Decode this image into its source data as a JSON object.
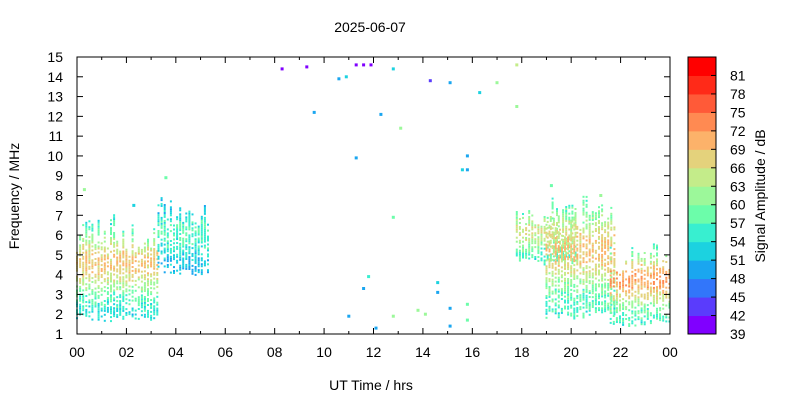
{
  "chart_data": {
    "type": "heatmap",
    "title": "2025-06-07",
    "xlabel": "UT Time / hrs",
    "ylabel": "Frequency / MHz",
    "xlim": [
      0,
      24
    ],
    "ylim": [
      1,
      15
    ],
    "x_ticks": [
      "00",
      "02",
      "04",
      "06",
      "08",
      "10",
      "12",
      "14",
      "16",
      "18",
      "20",
      "22",
      "00"
    ],
    "y_ticks": [
      "1",
      "2",
      "3",
      "4",
      "5",
      "6",
      "7",
      "8",
      "9",
      "10",
      "11",
      "12",
      "13",
      "14",
      "15"
    ],
    "colorbar": {
      "label": "Signal Amplitude / dB",
      "min": 39,
      "max": 81,
      "step": 3,
      "ticks": [
        "39",
        "42",
        "45",
        "48",
        "51",
        "54",
        "57",
        "60",
        "63",
        "66",
        "69",
        "72",
        "75",
        "78",
        "81"
      ],
      "colors": [
        "#8000ff",
        "#5a3cfc",
        "#3276fa",
        "#1aa6f0",
        "#1cd2e0",
        "#38efd0",
        "#6cfdaa",
        "#9cf89a",
        "#c4ec8a",
        "#e4d27c",
        "#fcb26a",
        "#ff8a52",
        "#ff5a38",
        "#ff2a18",
        "#ff0000"
      ]
    },
    "activity_bands": [
      {
        "x_start": 0.0,
        "x_end": 3.3,
        "f_min": 1.6,
        "f_max": 7.0,
        "amp_peak": 69,
        "amp_base": 53
      },
      {
        "x_start": 3.3,
        "x_end": 5.3,
        "f_min": 4.0,
        "f_max": 7.8,
        "amp_peak": 57,
        "amp_base": 51
      },
      {
        "x_start": 17.8,
        "x_end": 20.2,
        "f_min": 4.5,
        "f_max": 7.6,
        "amp_peak": 66,
        "amp_base": 56
      },
      {
        "x_start": 19.0,
        "x_end": 21.8,
        "f_min": 1.8,
        "f_max": 8.0,
        "amp_peak": 69,
        "amp_base": 56
      },
      {
        "x_start": 21.6,
        "x_end": 24.0,
        "f_min": 1.4,
        "f_max": 5.6,
        "amp_peak": 72,
        "amp_base": 56
      }
    ],
    "isolated_points": [
      {
        "x": 8.3,
        "f": 14.4,
        "amp": 40
      },
      {
        "x": 9.3,
        "f": 14.5,
        "amp": 41
      },
      {
        "x": 11.3,
        "f": 14.6,
        "amp": 40
      },
      {
        "x": 11.6,
        "f": 14.6,
        "amp": 41
      },
      {
        "x": 11.9,
        "f": 14.6,
        "amp": 40
      },
      {
        "x": 14.3,
        "f": 13.8,
        "amp": 42
      },
      {
        "x": 10.6,
        "f": 13.9,
        "amp": 50
      },
      {
        "x": 10.9,
        "f": 14.0,
        "amp": 53
      },
      {
        "x": 12.8,
        "f": 14.4,
        "amp": 52
      },
      {
        "x": 15.1,
        "f": 13.7,
        "amp": 48
      },
      {
        "x": 16.3,
        "f": 13.2,
        "amp": 52
      },
      {
        "x": 17.0,
        "f": 13.7,
        "amp": 60
      },
      {
        "x": 17.8,
        "f": 14.6,
        "amp": 64
      },
      {
        "x": 17.8,
        "f": 12.5,
        "amp": 62
      },
      {
        "x": 9.6,
        "f": 12.2,
        "amp": 48
      },
      {
        "x": 12.3,
        "f": 12.1,
        "amp": 48
      },
      {
        "x": 13.1,
        "f": 11.4,
        "amp": 60
      },
      {
        "x": 11.3,
        "f": 9.9,
        "amp": 48
      },
      {
        "x": 15.8,
        "f": 10.0,
        "amp": 48
      },
      {
        "x": 15.6,
        "f": 9.3,
        "amp": 51
      },
      {
        "x": 15.8,
        "f": 9.3,
        "amp": 50
      },
      {
        "x": 3.6,
        "f": 8.9,
        "amp": 58
      },
      {
        "x": 0.3,
        "f": 8.3,
        "amp": 62
      },
      {
        "x": 2.3,
        "f": 7.5,
        "amp": 52
      },
      {
        "x": 12.8,
        "f": 6.9,
        "amp": 58
      },
      {
        "x": 11.8,
        "f": 3.9,
        "amp": 55
      },
      {
        "x": 11.6,
        "f": 3.3,
        "amp": 50
      },
      {
        "x": 14.6,
        "f": 3.6,
        "amp": 51
      },
      {
        "x": 14.6,
        "f": 3.1,
        "amp": 50
      },
      {
        "x": 13.8,
        "f": 2.2,
        "amp": 62
      },
      {
        "x": 14.1,
        "f": 2.0,
        "amp": 60
      },
      {
        "x": 12.8,
        "f": 1.9,
        "amp": 62
      },
      {
        "x": 11.0,
        "f": 1.9,
        "amp": 48
      },
      {
        "x": 15.1,
        "f": 2.3,
        "amp": 48
      },
      {
        "x": 15.8,
        "f": 2.5,
        "amp": 58
      },
      {
        "x": 15.8,
        "f": 1.7,
        "amp": 58
      },
      {
        "x": 12.1,
        "f": 1.3,
        "amp": 48
      },
      {
        "x": 15.1,
        "f": 1.4,
        "amp": 48
      },
      {
        "x": 19.2,
        "f": 8.5,
        "amp": 58
      },
      {
        "x": 21.2,
        "f": 8.0,
        "amp": 60
      }
    ]
  }
}
